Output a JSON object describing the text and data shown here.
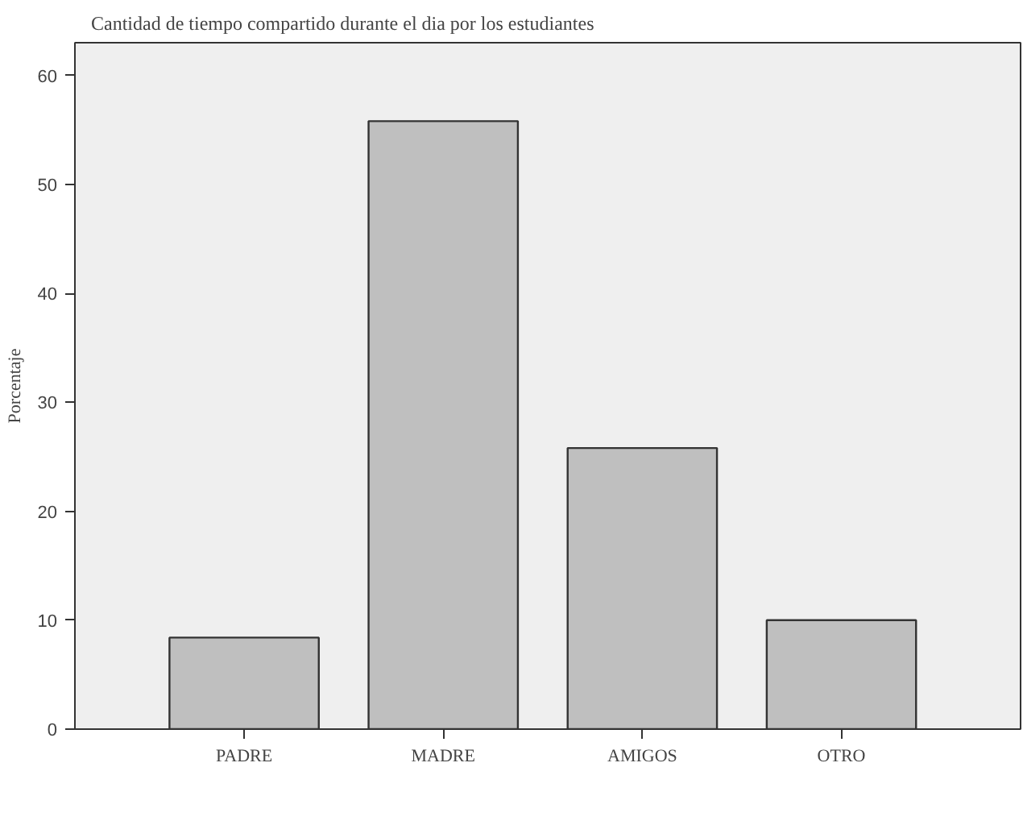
{
  "chart_data": {
    "type": "bar",
    "title": "Cantidad de tiempo compartido durante el dia por los estudiantes",
    "ylabel": "Porcentaje",
    "categories": [
      "PADRE",
      "MADRE",
      "AMIGOS",
      "OTRO"
    ],
    "values": [
      8.4,
      55.8,
      25.8,
      10.0
    ],
    "color": "#bfbfbf",
    "ylim": [
      0,
      63
    ],
    "yticks": [
      0,
      10,
      20,
      30,
      40,
      50,
      60
    ],
    "grid": false,
    "legend": false
  }
}
